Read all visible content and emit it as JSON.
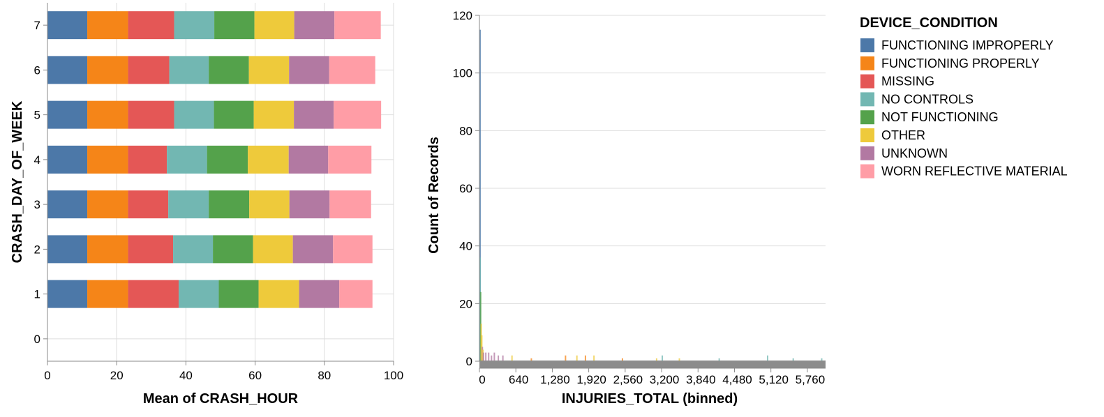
{
  "chart_data": [
    {
      "type": "bar",
      "orientation": "horizontal",
      "stacked": true,
      "xlabel": "Mean of CRASH_HOUR",
      "ylabel": "CRASH_DAY_OF_WEEK",
      "xlim": [
        0,
        100
      ],
      "xticks": [
        0,
        20,
        40,
        60,
        80,
        100
      ],
      "categories": [
        "0",
        "1",
        "2",
        "3",
        "4",
        "5",
        "6",
        "7"
      ],
      "grid": true,
      "series": [
        {
          "name": "FUNCTIONING IMPROPERLY",
          "color": "#4c78a8",
          "values": [
            null,
            11.5,
            11.5,
            11.5,
            11.5,
            11.5,
            11.5,
            11.5
          ]
        },
        {
          "name": "FUNCTIONING PROPERLY",
          "color": "#f58518",
          "values": [
            null,
            11.8,
            11.8,
            11.8,
            11.8,
            11.8,
            11.8,
            11.8
          ]
        },
        {
          "name": "MISSING",
          "color": "#e45756",
          "values": [
            null,
            14.6,
            13.0,
            11.6,
            11.2,
            13.3,
            11.9,
            13.3
          ]
        },
        {
          "name": "NO CONTROLS",
          "color": "#72b7b2",
          "values": [
            null,
            11.6,
            11.5,
            11.7,
            11.6,
            11.5,
            11.4,
            11.6
          ]
        },
        {
          "name": "NOT FUNCTIONING",
          "color": "#54a24b",
          "values": [
            null,
            11.5,
            11.6,
            11.7,
            11.8,
            11.5,
            11.6,
            11.6
          ]
        },
        {
          "name": "OTHER",
          "color": "#eeca3b",
          "values": [
            null,
            11.7,
            11.5,
            11.6,
            11.8,
            11.6,
            11.6,
            11.5
          ]
        },
        {
          "name": "UNKNOWN",
          "color": "#b279a2",
          "values": [
            null,
            11.6,
            11.6,
            11.6,
            11.4,
            11.5,
            11.6,
            11.6
          ]
        },
        {
          "name": "WORN REFLECTIVE MATERIAL",
          "color": "#ff9da6",
          "values": [
            null,
            9.6,
            11.4,
            12.0,
            12.5,
            13.7,
            13.3,
            13.4
          ]
        }
      ]
    },
    {
      "type": "bar",
      "subtype": "histogram",
      "xlabel": "INJURIES_TOTAL (binned)",
      "ylabel": "Count of Records",
      "ylim": [
        0,
        120
      ],
      "yticks": [
        0,
        20,
        40,
        60,
        80,
        100,
        120
      ],
      "xlim": [
        0,
        6080
      ],
      "xticks": [
        0,
        640,
        1280,
        1920,
        2560,
        3200,
        3840,
        4480,
        5120,
        5760
      ],
      "xtick_labels": [
        "0",
        "640",
        "1,280",
        "1,920",
        "2,560",
        "3,200",
        "3,840",
        "4,480",
        "5,120",
        "5,760"
      ],
      "grid": true,
      "bin_width": 10,
      "spikes": [
        {
          "x": 0,
          "count": 115,
          "series": "FUNCTIONING IMPROPERLY"
        },
        {
          "x": 0,
          "count": 36,
          "series": "NO CONTROLS"
        },
        {
          "x": 10,
          "count": 24,
          "series": "NOT FUNCTIONING"
        },
        {
          "x": 20,
          "count": 13,
          "series": "OTHER"
        },
        {
          "x": 30,
          "count": 9,
          "series": "OTHER"
        },
        {
          "x": 40,
          "count": 5,
          "series": "UNKNOWN"
        },
        {
          "x": 50,
          "count": 4,
          "series": "OTHER"
        },
        {
          "x": 60,
          "count": 3,
          "series": "UNKNOWN"
        },
        {
          "x": 100,
          "count": 3,
          "series": "UNKNOWN"
        },
        {
          "x": 150,
          "count": 3,
          "series": "UNKNOWN"
        },
        {
          "x": 200,
          "count": 2,
          "series": "UNKNOWN"
        },
        {
          "x": 250,
          "count": 3,
          "series": "UNKNOWN"
        },
        {
          "x": 320,
          "count": 2,
          "series": "UNKNOWN"
        },
        {
          "x": 400,
          "count": 2,
          "series": "UNKNOWN"
        },
        {
          "x": 560,
          "count": 2,
          "series": "OTHER"
        },
        {
          "x": 900,
          "count": 1,
          "series": "FUNCTIONING PROPERLY"
        },
        {
          "x": 1500,
          "count": 2,
          "series": "FUNCTIONING PROPERLY"
        },
        {
          "x": 1700,
          "count": 2,
          "series": "OTHER"
        },
        {
          "x": 1850,
          "count": 2,
          "series": "FUNCTIONING PROPERLY"
        },
        {
          "x": 2000,
          "count": 2,
          "series": "OTHER"
        },
        {
          "x": 2500,
          "count": 1,
          "series": "FUNCTIONING PROPERLY"
        },
        {
          "x": 3100,
          "count": 1,
          "series": "OTHER"
        },
        {
          "x": 3200,
          "count": 2,
          "series": "NO CONTROLS"
        },
        {
          "x": 3500,
          "count": 1,
          "series": "OTHER"
        },
        {
          "x": 4200,
          "count": 1,
          "series": "NO CONTROLS"
        },
        {
          "x": 5050,
          "count": 2,
          "series": "NO CONTROLS"
        },
        {
          "x": 5500,
          "count": 1,
          "series": "NO CONTROLS"
        },
        {
          "x": 6000,
          "count": 1,
          "series": "NO CONTROLS"
        }
      ]
    }
  ],
  "legend": {
    "title": "DEVICE_CONDITION",
    "placement": "right",
    "items": [
      {
        "label": "FUNCTIONING IMPROPERLY",
        "color": "#4c78a8"
      },
      {
        "label": "FUNCTIONING PROPERLY",
        "color": "#f58518"
      },
      {
        "label": "MISSING",
        "color": "#e45756"
      },
      {
        "label": "NO CONTROLS",
        "color": "#72b7b2"
      },
      {
        "label": "NOT FUNCTIONING",
        "color": "#54a24b"
      },
      {
        "label": "OTHER",
        "color": "#eeca3b"
      },
      {
        "label": "UNKNOWN",
        "color": "#b279a2"
      },
      {
        "label": "WORN REFLECTIVE MATERIAL",
        "color": "#ff9da6"
      }
    ]
  }
}
